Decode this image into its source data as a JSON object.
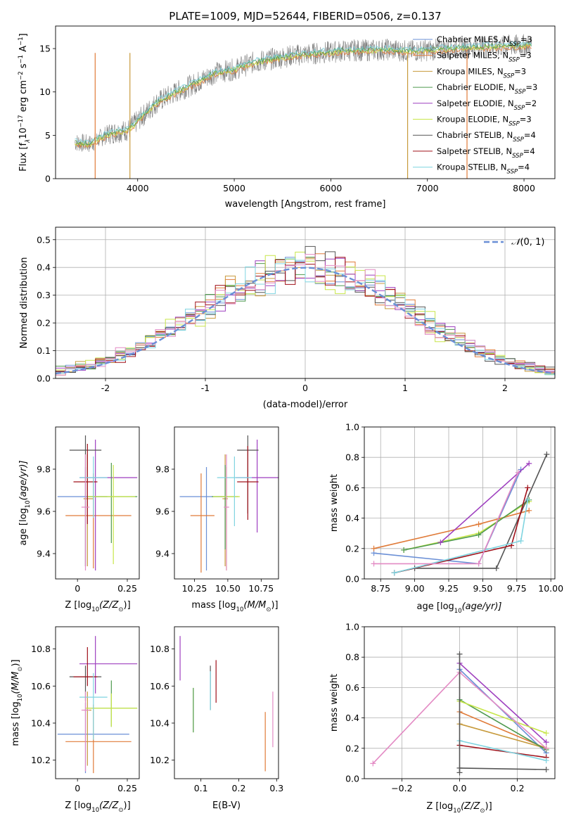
{
  "figure_title": "PLATE=1009, MJD=52644, FIBERID=0506, z=0.137",
  "colors": {
    "Chabrier MILES": "#6a8fd6",
    "Salpeter MILES": "#e07b39",
    "Kroupa MILES": "#c79a3c",
    "Chabrier ELODIE": "#4f9a4f",
    "Salpeter ELODIE": "#9e3fbf",
    "Kroupa ELODIE": "#c8e64a",
    "Chabrier STELIB": "#555555",
    "Salpeter STELIB": "#a0111a",
    "Kroupa STELIB": "#7fd4e0",
    "gauss": "#6a8fd6",
    "pink": "#e38ac4",
    "data": "#808080"
  },
  "chart_data": [
    {
      "id": "spectrum",
      "type": "line",
      "title": "PLATE=1009, MJD=52644, FIBERID=0506, z=0.137",
      "xlabel": "wavelength [Angstrom, rest frame]",
      "ylabel_main": "Flux [f",
      "ylabel_sub": "λ",
      "ylabel_rest": "10",
      "ylabel_exp": "−17",
      "ylabel_units": " erg cm",
      "ylabel_units_exp": "−2",
      "ylabel_s": " s",
      "ylabel_s_exp": "−1",
      "ylabel_A": " A",
      "ylabel_A_exp": "−1",
      "ylabel_end": "]",
      "xlim": [
        3150,
        8320
      ],
      "ylim": [
        0,
        17.6
      ],
      "xticks": [
        4000,
        5000,
        6000,
        7000,
        8000
      ],
      "yticks": [
        0,
        5,
        10,
        15
      ],
      "data_envelope": {
        "x": [
          3350,
          3500,
          3700,
          3900,
          4050,
          4200,
          4400,
          4600,
          4800,
          5000,
          5200,
          5400,
          5600,
          5800,
          6000,
          6200,
          6400,
          6600,
          6800,
          7000,
          7200,
          7400,
          7600,
          7800,
          8000,
          8100
        ],
        "y": [
          4.2,
          4.0,
          5.2,
          5.6,
          7.2,
          8.8,
          10.0,
          11.0,
          12.2,
          12.6,
          13.4,
          13.8,
          14.2,
          14.4,
          14.6,
          14.8,
          14.8,
          14.9,
          14.7,
          14.8,
          15.0,
          15.1,
          15.2,
          15.3,
          15.4,
          15.4
        ]
      },
      "legend": [
        {
          "name": "Chabrier MILES, N",
          "sub": "SSP",
          "val": "=3"
        },
        {
          "name": "Salpeter MILES, N",
          "sub": "SSP",
          "val": "=3"
        },
        {
          "name": "Kroupa MILES, N",
          "sub": "SSP",
          "val": "=3"
        },
        {
          "name": "Chabrier ELODIE, N",
          "sub": "SSP",
          "val": "=3"
        },
        {
          "name": "Salpeter ELODIE, N",
          "sub": "SSP",
          "val": "=2"
        },
        {
          "name": "Kroupa ELODIE, N",
          "sub": "SSP",
          "val": "=3"
        },
        {
          "name": "Chabrier STELIB, N",
          "sub": "SSP",
          "val": "=4"
        },
        {
          "name": "Salpeter STELIB, N",
          "sub": "SSP",
          "val": "=4"
        },
        {
          "name": "Kroupa STELIB, N",
          "sub": "SSP",
          "val": "=4"
        }
      ],
      "legend_placement": "top-right"
    },
    {
      "id": "residuals",
      "type": "histogram",
      "xlabel": "(data-model)/error",
      "ylabel": "Normed distribution",
      "xlim": [
        -2.5,
        2.5
      ],
      "ylim": [
        0,
        0.545
      ],
      "xticks": [
        -2,
        -1,
        0,
        1,
        2
      ],
      "yticks": [
        0.0,
        0.1,
        0.2,
        0.3,
        0.4,
        0.5
      ],
      "grid": true,
      "bin_width": 0.1,
      "legend_label_prefix": "𝒩",
      "legend_label_rest": "(0, 1)",
      "legend_placement": "top-right"
    },
    {
      "id": "z-age",
      "type": "errorbar",
      "xlabel_main": "Z [log",
      "xlabel_sub": "10",
      "xlabel_rest": "(Z/Z",
      "xlabel_sun": "⊙",
      "xlabel_end": ")]",
      "ylabel_main": "age  [log",
      "ylabel_sub": "10",
      "ylabel_rest": "(age/yr)]",
      "xlim": [
        -0.11,
        0.31
      ],
      "ylim": [
        9.28,
        10.0
      ],
      "xticks": [
        0.0,
        0.25
      ],
      "yticks": [
        9.4,
        9.6,
        9.8
      ],
      "points": [
        {
          "m": "Chabrier MILES",
          "x": 0.04,
          "xe": [
            0.14,
            0.11
          ],
          "y": 9.67,
          "ye": [
            0.33,
            0.14
          ]
        },
        {
          "m": "Salpeter MILES",
          "x": 0.08,
          "xe": [
            0.14,
            0.19
          ],
          "y": 9.58,
          "ye": [
            0.25,
            0.2
          ]
        },
        {
          "m": "Kroupa MILES",
          "x": 0.05,
          "xe": [
            0.02,
            0.03
          ],
          "y": 9.66,
          "ye": [
            0.32,
            0.21
          ]
        },
        {
          "m": "Chabrier ELODIE",
          "x": 0.17,
          "xe": [
            0.12,
            0.13
          ],
          "y": 9.67,
          "ye": [
            0.22,
            0.16
          ]
        },
        {
          "m": "Salpeter ELODIE",
          "x": 0.09,
          "xe": [
            0.08,
            0.21
          ],
          "y": 9.76,
          "ye": [
            0.44,
            0.18
          ]
        },
        {
          "m": "Kroupa ELODIE",
          "x": 0.18,
          "xe": [
            0.13,
            0.11
          ],
          "y": 9.67,
          "ye": [
            0.32,
            0.15
          ]
        },
        {
          "m": "Chabrier STELIB",
          "x": 0.04,
          "xe": [
            0.08,
            0.08
          ],
          "y": 9.89,
          "ye": [
            0.55,
            0.07
          ]
        },
        {
          "m": "Salpeter STELIB",
          "x": 0.05,
          "xe": [
            0.07,
            0.05
          ],
          "y": 9.74,
          "ye": [
            0.2,
            0.18
          ]
        },
        {
          "m": "Kroupa STELIB",
          "x": 0.08,
          "xe": [
            0.07,
            0.07
          ],
          "y": 9.76,
          "ye": [
            0.19,
            0.1
          ]
        },
        {
          "m": "pink",
          "x": 0.04,
          "xe": [
            0.02,
            0.02
          ],
          "y": 9.62,
          "ye": [
            0.3,
            0.25
          ]
        }
      ]
    },
    {
      "id": "mass-age",
      "type": "errorbar",
      "xlabel_main": "mass [log",
      "xlabel_sub": "10",
      "xlabel_rest": "(M/M",
      "xlabel_sun": "⊙",
      "xlabel_end": ")]",
      "xlim": [
        10.1,
        10.88
      ],
      "ylim": [
        9.28,
        10.0
      ],
      "xticks": [
        10.25,
        10.5,
        10.75
      ],
      "xtick_labels": [
        "10.25",
        "10.50",
        "10.75"
      ],
      "yticks": [
        9.4,
        9.6,
        9.8
      ],
      "points": [
        {
          "m": "Chabrier MILES",
          "x": 10.34,
          "xe": [
            0.2,
            0.16
          ],
          "y": 9.67,
          "ye": [
            0.35,
            0.14
          ]
        },
        {
          "m": "Salpeter MILES",
          "x": 10.3,
          "xe": [
            0.08,
            0.1
          ],
          "y": 9.58,
          "ye": [
            0.27,
            0.2
          ]
        },
        {
          "m": "Kroupa MILES",
          "x": 10.48,
          "xe": [
            0.02,
            0.02
          ],
          "y": 9.66,
          "ye": [
            0.32,
            0.21
          ]
        },
        {
          "m": "Chabrier ELODIE",
          "x": 10.48,
          "xe": [
            0.1,
            0.1
          ],
          "y": 9.67,
          "ye": [
            0.25,
            0.15
          ]
        },
        {
          "m": "Salpeter ELODIE",
          "x": 10.72,
          "xe": [
            0.16,
            0.16
          ],
          "y": 9.76,
          "ye": [
            0.26,
            0.18
          ]
        },
        {
          "m": "Kroupa ELODIE",
          "x": 10.49,
          "xe": [
            0.1,
            0.1
          ],
          "y": 9.67,
          "ye": [
            0.35,
            0.14
          ]
        },
        {
          "m": "Chabrier STELIB",
          "x": 10.65,
          "xe": [
            0.08,
            0.08
          ],
          "y": 9.89,
          "ye": [
            0.3,
            0.07
          ]
        },
        {
          "m": "Salpeter STELIB",
          "x": 10.65,
          "xe": [
            0.08,
            0.08
          ],
          "y": 9.74,
          "ye": [
            0.18,
            0.17
          ]
        },
        {
          "m": "Kroupa STELIB",
          "x": 10.55,
          "xe": [
            0.13,
            0.13
          ],
          "y": 9.76,
          "ye": [
            0.23,
            0.1
          ]
        },
        {
          "m": "pink",
          "x": 10.49,
          "xe": [
            0.02,
            0.02
          ],
          "y": 9.62,
          "ye": [
            0.3,
            0.25
          ]
        }
      ]
    },
    {
      "id": "age-weight",
      "type": "line",
      "xlabel_main": "age  [log",
      "xlabel_sub": "10",
      "xlabel_rest": "(age/yr)]",
      "ylabel": "mass weight",
      "xlim": [
        8.63,
        10.03
      ],
      "ylim": [
        0,
        1.0
      ],
      "xticks": [
        8.75,
        9.0,
        9.25,
        9.5,
        9.75,
        10.0
      ],
      "xtick_labels": [
        "8.75",
        "9.00",
        "9.25",
        "9.50",
        "9.75",
        "10.00"
      ],
      "yticks": [
        0.0,
        0.2,
        0.4,
        0.6,
        0.8,
        1.0
      ],
      "grid": true,
      "series": [
        {
          "m": "Chabrier MILES",
          "x": [
            8.7,
            9.47,
            9.78
          ],
          "y": [
            0.17,
            0.1,
            0.72
          ]
        },
        {
          "m": "Salpeter MILES",
          "x": [
            8.7,
            9.47,
            9.84
          ],
          "y": [
            0.2,
            0.36,
            0.45
          ]
        },
        {
          "m": "Kroupa ELODIE",
          "x": [
            8.92,
            9.47,
            9.84
          ],
          "y": [
            0.19,
            0.3,
            0.51
          ]
        },
        {
          "m": "Chabrier ELODIE",
          "x": [
            8.92,
            9.47,
            9.84
          ],
          "y": [
            0.19,
            0.29,
            0.52
          ]
        },
        {
          "m": "Salpeter ELODIE",
          "x": [
            9.19,
            9.84
          ],
          "y": [
            0.24,
            0.76
          ]
        },
        {
          "m": "Chabrier STELIB",
          "x": [
            8.85,
            9.0,
            9.6,
            9.97
          ],
          "y": [
            0.04,
            0.07,
            0.07,
            0.82
          ]
        },
        {
          "m": "Salpeter STELIB",
          "x": [
            8.85,
            9.71,
            9.83
          ],
          "y": [
            0.04,
            0.22,
            0.6
          ]
        },
        {
          "m": "Kroupa STELIB",
          "x": [
            8.85,
            9.78,
            9.83
          ],
          "y": [
            0.04,
            0.25,
            0.52
          ]
        },
        {
          "m": "pink",
          "x": [
            8.7,
            9.47,
            9.76
          ],
          "y": [
            0.1,
            0.1,
            0.7
          ]
        }
      ]
    },
    {
      "id": "z-mass",
      "type": "errorbar",
      "xlabel_main": "Z [log",
      "xlabel_sub": "10",
      "xlabel_rest": "(Z/Z",
      "xlabel_sun": "⊙",
      "xlabel_end": ")]",
      "ylabel_main": "mass [log",
      "ylabel_sub": "10",
      "ylabel_rest": "(M/M",
      "ylabel_sun": "⊙",
      "ylabel_end": ")]",
      "xlim": [
        -0.11,
        0.31
      ],
      "ylim": [
        10.1,
        10.92
      ],
      "xticks": [
        0.0,
        0.25
      ],
      "yticks": [
        10.2,
        10.4,
        10.6,
        10.8
      ],
      "points": [
        {
          "m": "Chabrier MILES",
          "x": 0.04,
          "xe": [
            0.14,
            0.22
          ],
          "y": 10.34,
          "ye": [
            0.21,
            0.17
          ]
        },
        {
          "m": "Salpeter MILES",
          "x": 0.08,
          "xe": [
            0.14,
            0.19
          ],
          "y": 10.3,
          "ye": [
            0.17,
            0.2
          ]
        },
        {
          "m": "Kroupa MILES",
          "x": 0.05,
          "xe": [
            0.02,
            0.02
          ],
          "y": 10.47,
          "ye": [
            0.3,
            0.1
          ]
        },
        {
          "m": "Chabrier ELODIE",
          "x": 0.17,
          "xe": [
            0.12,
            0.13
          ],
          "y": 10.48,
          "ye": [
            0.1,
            0.15
          ]
        },
        {
          "m": "Salpeter ELODIE",
          "x": 0.09,
          "xe": [
            0.08,
            0.21
          ],
          "y": 10.72,
          "ye": [
            0.16,
            0.15
          ]
        },
        {
          "m": "Kroupa ELODIE",
          "x": 0.17,
          "xe": [
            0.13,
            0.13
          ],
          "y": 10.48,
          "ye": [
            0.1,
            0.08
          ]
        },
        {
          "m": "Chabrier STELIB",
          "x": 0.04,
          "xe": [
            0.08,
            0.08
          ],
          "y": 10.65,
          "ye": [
            0.13,
            0.06
          ]
        },
        {
          "m": "Salpeter STELIB",
          "x": 0.05,
          "xe": [
            0.07,
            0.05
          ],
          "y": 10.65,
          "ye": [
            0.05,
            0.16
          ]
        },
        {
          "m": "Kroupa STELIB",
          "x": 0.08,
          "xe": [
            0.07,
            0.07
          ],
          "y": 10.54,
          "ye": [
            0.23,
            0.13
          ]
        },
        {
          "m": "pink",
          "x": 0.04,
          "xe": [
            0.02,
            0.02
          ],
          "y": 10.47,
          "ye": [
            0.33,
            0.1
          ]
        }
      ]
    },
    {
      "id": "ebv-mass",
      "type": "errorbar",
      "xlabel": "E(B-V)",
      "xlim": [
        0.03,
        0.305
      ],
      "ylim": [
        10.1,
        10.92
      ],
      "xticks": [
        0.1,
        0.2,
        0.3
      ],
      "yticks": [
        10.2,
        10.4,
        10.6,
        10.8
      ],
      "points": [
        {
          "m": "Salpeter ELODIE",
          "x": 0.045,
          "y": 10.75,
          "ye": [
            0.12,
            0.12
          ]
        },
        {
          "m": "Kroupa ELODIE",
          "x": 0.08,
          "y": 10.47,
          "ye": [
            0.12,
            0.12
          ]
        },
        {
          "m": "Chabrier ELODIE",
          "x": 0.08,
          "y": 10.47,
          "ye": [
            0.12,
            0.12
          ]
        },
        {
          "m": "Chabrier STELIB",
          "x": 0.125,
          "y": 10.58,
          "ye": [
            0.11,
            0.13
          ]
        },
        {
          "m": "Kroupa STELIB",
          "x": 0.125,
          "y": 10.58,
          "ye": [
            0.11,
            0.1
          ]
        },
        {
          "m": "Salpeter STELIB",
          "x": 0.14,
          "y": 10.66,
          "ye": [
            0.15,
            0.08
          ]
        },
        {
          "m": "Salpeter MILES",
          "x": 0.27,
          "y": 10.3,
          "ye": [
            0.16,
            0.16
          ]
        },
        {
          "m": "pink",
          "x": 0.29,
          "y": 10.42,
          "ye": [
            0.15,
            0.15
          ]
        }
      ]
    },
    {
      "id": "z-weight",
      "type": "line",
      "xlabel_main": "Z [log",
      "xlabel_sub": "10",
      "xlabel_rest": "(Z/Z",
      "xlabel_sun": "⊙",
      "xlabel_end": ")]",
      "ylabel": "mass weight",
      "xlim": [
        -0.33,
        0.33
      ],
      "ylim": [
        0,
        1.0
      ],
      "xticks": [
        -0.2,
        0.0,
        0.2
      ],
      "xtick_labels": [
        "−0.2",
        "0.0",
        "0.2"
      ],
      "yticks": [
        0.0,
        0.2,
        0.4,
        0.6,
        0.8,
        1.0
      ],
      "grid": true,
      "series": [
        {
          "m": "Chabrier MILES",
          "x": [
            0.0,
            0.3
          ],
          "y": [
            0.72,
            0.17
          ]
        },
        {
          "m": "Salpeter MILES",
          "x": [
            0.0,
            0.3
          ],
          "y": [
            0.44,
            0.2
          ]
        },
        {
          "m": "Kroupa MILES",
          "x": [
            0.0,
            0.3
          ],
          "y": [
            0.36,
            0.2
          ]
        },
        {
          "m": "Chabrier ELODIE",
          "x": [
            0.0,
            0.3
          ],
          "y": [
            0.52,
            0.19
          ]
        },
        {
          "m": "Salpeter ELODIE",
          "x": [
            0.0,
            0.3
          ],
          "y": [
            0.76,
            0.24
          ]
        },
        {
          "m": "Kroupa ELODIE",
          "x": [
            0.0,
            0.3
          ],
          "y": [
            0.51,
            0.3
          ]
        },
        {
          "m": "Chabrier STELIB",
          "x": [
            0.0,
            0.3
          ],
          "y": [
            0.07,
            0.06
          ]
        },
        {
          "m": "Salpeter STELIB",
          "x": [
            0.0,
            0.3
          ],
          "y": [
            0.22,
            0.14
          ]
        },
        {
          "m": "Kroupa STELIB",
          "x": [
            0.0,
            0.3
          ],
          "y": [
            0.25,
            0.12
          ]
        },
        {
          "m": "pink",
          "x": [
            -0.3,
            0.0,
            0.3
          ],
          "y": [
            0.1,
            0.7,
            0.2
          ]
        },
        {
          "m": "Chabrier STELIB",
          "x": [
            0.0,
            0.0
          ],
          "y": [
            0.04,
            0.82
          ]
        }
      ]
    }
  ]
}
